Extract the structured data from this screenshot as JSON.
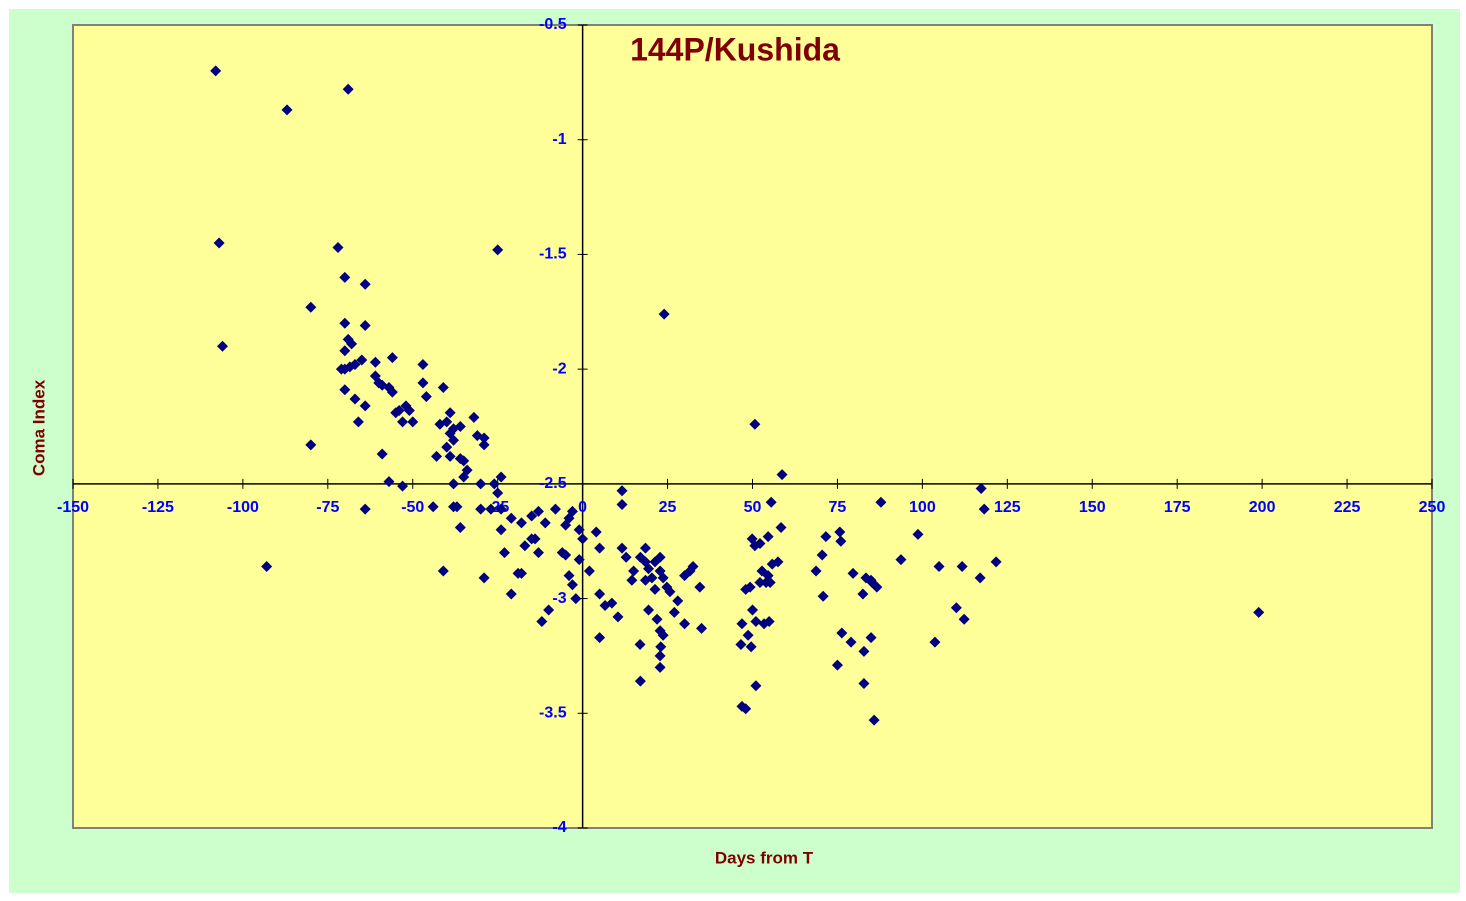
{
  "chart_data": {
    "type": "scatter",
    "title": "144P/Kushida",
    "x_label": "Days from T",
    "y_label": "Coma Index",
    "color": "#000080",
    "xlim": [
      -150,
      250
    ],
    "ylim": [
      -4,
      -0.5
    ],
    "xticks": [
      -150,
      -125,
      -100,
      -75,
      -50,
      -25,
      0,
      25,
      50,
      75,
      100,
      125,
      150,
      175,
      200,
      225,
      250
    ],
    "yticks": [
      -4,
      -3.5,
      -3,
      -2.5,
      -2,
      -1.5,
      -1,
      -0.5
    ],
    "x_axis_crosses_y": -2.5,
    "y_axis_crosses_x": 0,
    "x": [
      -108,
      -69,
      -87,
      -107,
      -25,
      -106,
      -72,
      -70,
      -64,
      -80,
      -70,
      -64,
      -69,
      -68,
      -70,
      -56,
      -65,
      -61,
      -71,
      -70,
      -68.5,
      -67,
      -47,
      -61,
      -60,
      -59,
      -57,
      -56,
      -51,
      -70,
      -47,
      -46,
      -41,
      -67,
      -64,
      -54,
      -52,
      -55,
      -53,
      -50,
      -66,
      -39,
      -40,
      -42,
      -38,
      -39,
      -36,
      -38,
      -40,
      -32,
      -29,
      -29,
      -31,
      -80,
      -59,
      -43,
      -39,
      -36,
      -35,
      -34,
      -35,
      -57,
      -53,
      -38,
      -30,
      -26,
      -24,
      -25,
      -27,
      -24,
      -64,
      -44,
      -38,
      -37,
      -30,
      -36,
      -41,
      -29,
      -21,
      -93,
      -24,
      -21,
      -18,
      -15,
      -13,
      -8,
      -11,
      -4,
      -3,
      -5,
      -23,
      -17,
      -14,
      -13,
      -15,
      -19,
      -18,
      -6,
      -5,
      -4,
      -3,
      -2,
      -10,
      -12,
      -1,
      -1,
      0,
      24,
      11.6,
      11.6,
      4,
      5,
      2,
      5,
      5,
      6.6,
      8.6,
      10.4,
      11.6,
      12.8,
      15,
      14.5,
      17,
      18.5,
      18.5,
      19.4,
      20.4,
      21.3,
      22.8,
      22.8,
      23.7,
      24.8,
      25.7,
      21.3,
      19.4,
      18.5,
      16.9,
      17,
      21.9,
      22.8,
      23,
      22.8,
      22.8,
      23.7,
      27,
      28,
      30,
      31.6,
      30,
      32.5,
      34.5,
      35,
      50.7,
      58.7,
      55.5,
      58.4,
      49.9,
      50.7,
      52.2,
      54.6,
      55.8,
      57.5,
      52.8,
      54.6,
      52.2,
      54,
      55.2,
      48,
      49.3,
      50,
      51,
      53.4,
      54.9,
      46.9,
      46.6,
      48.7,
      49.6,
      51,
      46.9,
      48,
      71.6,
      70.5,
      68.7,
      70.8,
      75.7,
      76,
      79.6,
      82.5,
      83.4,
      85.2,
      86.6,
      84.9,
      76.3,
      79,
      82.8,
      84.9,
      82.8,
      85.8,
      75,
      87.8,
      93.7,
      98.7,
      103.7,
      104.9,
      110,
      111.7,
      112.3,
      117,
      117.3,
      118.2,
      121.7,
      199
    ],
    "values": [
      -0.7,
      -0.78,
      -0.87,
      -1.45,
      -1.48,
      -1.9,
      -1.47,
      -1.6,
      -1.63,
      -1.73,
      -1.8,
      -1.81,
      -1.87,
      -1.89,
      -1.92,
      -1.95,
      -1.96,
      -1.97,
      -2.0,
      -2.0,
      -1.99,
      -1.98,
      -1.98,
      -2.03,
      -2.06,
      -2.07,
      -2.08,
      -2.1,
      -2.18,
      -2.09,
      -2.06,
      -2.12,
      -2.08,
      -2.13,
      -2.16,
      -2.18,
      -2.16,
      -2.19,
      -2.23,
      -2.23,
      -2.23,
      -2.19,
      -2.23,
      -2.24,
      -2.26,
      -2.28,
      -2.25,
      -2.31,
      -2.34,
      -2.21,
      -2.3,
      -2.33,
      -2.29,
      -2.33,
      -2.37,
      -2.38,
      -2.38,
      -2.39,
      -2.4,
      -2.44,
      -2.47,
      -2.49,
      -2.51,
      -2.5,
      -2.5,
      -2.5,
      -2.47,
      -2.54,
      -2.61,
      -2.61,
      -2.61,
      -2.6,
      -2.6,
      -2.6,
      -2.61,
      -2.69,
      -2.88,
      -2.91,
      -2.98,
      -2.86,
      -2.7,
      -2.65,
      -2.67,
      -2.64,
      -2.62,
      -2.61,
      -2.67,
      -2.65,
      -2.62,
      -2.68,
      -2.8,
      -2.77,
      -2.74,
      -2.8,
      -2.74,
      -2.89,
      -2.89,
      -2.8,
      -2.81,
      -2.9,
      -2.94,
      -3.0,
      -3.05,
      -3.1,
      -2.7,
      -2.83,
      -2.74,
      -1.76,
      -2.53,
      -2.59,
      -2.71,
      -2.78,
      -2.88,
      -2.98,
      -3.17,
      -3.03,
      -3.02,
      -3.08,
      -2.78,
      -2.82,
      -2.88,
      -2.92,
      -2.82,
      -2.78,
      -2.84,
      -2.87,
      -2.91,
      -2.84,
      -2.82,
      -2.88,
      -2.91,
      -2.95,
      -2.97,
      -2.96,
      -3.05,
      -2.92,
      -3.2,
      -3.36,
      -3.09,
      -3.14,
      -3.21,
      -3.25,
      -3.3,
      -3.16,
      -3.06,
      -3.01,
      -3.11,
      -2.88,
      -2.9,
      -2.86,
      -2.95,
      -3.13,
      -2.24,
      -2.46,
      -2.58,
      -2.69,
      -2.74,
      -2.77,
      -2.76,
      -2.73,
      -2.85,
      -2.84,
      -2.88,
      -2.9,
      -2.93,
      -2.93,
      -2.93,
      -2.96,
      -2.95,
      -3.05,
      -3.1,
      -3.11,
      -3.1,
      -3.11,
      -3.2,
      -3.16,
      -3.21,
      -3.38,
      -3.47,
      -3.48,
      -2.73,
      -2.81,
      -2.88,
      -2.99,
      -2.71,
      -2.75,
      -2.89,
      -2.98,
      -2.91,
      -2.93,
      -2.95,
      -2.92,
      -3.15,
      -3.19,
      -3.23,
      -3.17,
      -3.37,
      -3.53,
      -3.29,
      -2.58,
      -2.83,
      -2.72,
      -3.19,
      -2.86,
      -3.04,
      -2.86,
      -3.09,
      -2.91,
      -2.52,
      -2.61,
      -2.84,
      -3.06
    ]
  }
}
